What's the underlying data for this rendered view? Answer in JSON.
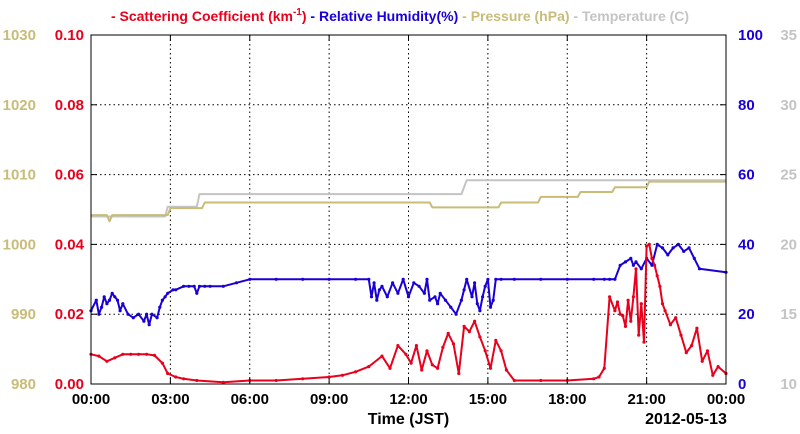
{
  "chart_data": {
    "type": "line",
    "legend": [
      {
        "dash": "-",
        "text": "Scattering Coefficient (km",
        "sup": "-1",
        "close": ")",
        "color": "#e8001c"
      },
      {
        "dash": "-",
        "text": "Relative Humidity(%)",
        "color": "#1a00d8"
      },
      {
        "dash": "-",
        "text": "Pressure (hPa)",
        "color": "#c8bc78"
      },
      {
        "dash": "-",
        "text": "Temperature (C)",
        "color": "#c4c4c4"
      }
    ],
    "xlabel": "Time (JST)",
    "date_label": "2012-05-13",
    "x_ticks": [
      "00:00",
      "03:00",
      "06:00",
      "09:00",
      "12:00",
      "15:00",
      "18:00",
      "21:00",
      "00:00"
    ],
    "x_range_hours": [
      0,
      24
    ],
    "axes": {
      "pressure": {
        "ticks": [
          "980",
          "990",
          "1000",
          "1010",
          "1020",
          "1030"
        ],
        "range": [
          980,
          1030
        ],
        "color": "#c8bc78"
      },
      "scattering": {
        "ticks": [
          "0.00",
          "0.02",
          "0.04",
          "0.06",
          "0.08",
          "0.10"
        ],
        "range": [
          0,
          0.1
        ],
        "color": "#e8001c"
      },
      "humidity": {
        "ticks": [
          "0",
          "20",
          "40",
          "60",
          "80",
          "100"
        ],
        "range": [
          0,
          100
        ],
        "color": "#1a00d8"
      },
      "temperature": {
        "ticks": [
          "10",
          "15",
          "20",
          "25",
          "30",
          "35"
        ],
        "range": [
          10,
          35
        ],
        "color": "#c4c4c4"
      }
    },
    "grid": true,
    "series": [
      {
        "name": "Temperature (C)",
        "axis": "temperature",
        "color": "#c4c4c4",
        "x": [
          0,
          0.5,
          1,
          2,
          2.8,
          2.9,
          4,
          4.1,
          14,
          14.2,
          21,
          21.1,
          24
        ],
        "y": [
          22.0,
          22.0,
          22.0,
          22.0,
          22.0,
          22.7,
          22.7,
          23.6,
          23.6,
          24.6,
          24.6,
          24.6,
          24.6
        ]
      },
      {
        "name": "Pressure (hPa)",
        "axis": "pressure",
        "color": "#c8bc78",
        "x": [
          0,
          0.6,
          0.7,
          0.8,
          2.9,
          3.0,
          4.2,
          4.3,
          10.5,
          10.6,
          12.8,
          12.9,
          15.4,
          15.5,
          16.9,
          17.0,
          18.4,
          18.5,
          19.7,
          19.8,
          21.0,
          21.1,
          24
        ],
        "y": [
          1004.2,
          1004.2,
          1003.3,
          1004.2,
          1004.2,
          1005.2,
          1005.2,
          1006.0,
          1006.0,
          1006.0,
          1006.0,
          1005.3,
          1005.3,
          1006.0,
          1006.0,
          1006.8,
          1006.8,
          1007.5,
          1007.5,
          1008.2,
          1008.2,
          1009.0,
          1009.0
        ]
      },
      {
        "name": "Relative Humidity(%)",
        "axis": "humidity",
        "color": "#1a00d8",
        "x": [
          0,
          0.2,
          0.3,
          0.4,
          0.5,
          0.6,
          0.7,
          0.8,
          0.9,
          1.0,
          1.1,
          1.2,
          1.4,
          1.6,
          1.8,
          2.0,
          2.1,
          2.2,
          2.3,
          2.5,
          2.6,
          2.7,
          2.8,
          2.9,
          3.1,
          3.2,
          3.5,
          3.7,
          3.9,
          4.0,
          4.1,
          4.3,
          4.5,
          5.0,
          5.5,
          6.0,
          7.0,
          8.0,
          9.0,
          10.0,
          10.5,
          10.6,
          10.7,
          10.8,
          10.9,
          11.0,
          11.2,
          11.4,
          11.6,
          11.8,
          12.0,
          12.2,
          12.4,
          12.6,
          12.7,
          12.8,
          13.0,
          13.1,
          13.2,
          13.4,
          13.6,
          13.8,
          14.0,
          14.1,
          14.2,
          14.4,
          14.5,
          14.6,
          14.7,
          14.8,
          14.9,
          15.0,
          15.1,
          15.2,
          15.3,
          15.5,
          16.0,
          17.0,
          18.0,
          19.0,
          19.4,
          19.6,
          19.8,
          20.0,
          20.2,
          20.4,
          20.5,
          20.6,
          20.8,
          21.0,
          21.2,
          21.4,
          21.6,
          21.8,
          22.0,
          22.2,
          22.4,
          22.6,
          22.8,
          23.0,
          24.0
        ],
        "y": [
          21,
          24,
          20,
          22,
          25,
          23,
          24,
          26,
          25,
          24,
          21,
          23,
          20,
          19,
          20,
          18,
          20,
          17,
          20,
          19,
          22,
          24,
          25,
          26,
          27,
          27,
          28,
          28,
          28,
          26,
          28,
          28,
          28,
          28,
          29,
          30,
          30,
          30,
          30,
          30,
          30,
          25,
          29,
          24,
          27,
          28,
          25,
          29,
          26,
          30,
          25,
          29,
          28,
          26,
          30,
          24,
          25,
          23,
          26,
          24,
          22,
          20,
          24,
          27,
          30,
          25,
          29,
          23,
          21,
          25,
          28,
          30,
          22,
          24,
          30,
          30,
          30,
          30,
          30,
          30,
          30,
          30,
          30,
          34,
          35,
          36,
          34,
          35,
          33,
          36,
          34,
          40,
          39,
          37,
          39,
          40,
          38,
          39,
          36,
          33,
          32
        ]
      },
      {
        "name": "Scattering Coefficient (km-1)",
        "axis": "scattering",
        "color": "#e8001c",
        "x": [
          0,
          0.3,
          0.6,
          0.9,
          1.2,
          1.5,
          1.8,
          2.1,
          2.4,
          2.7,
          2.9,
          3.2,
          3.5,
          4.0,
          5.0,
          6.0,
          7.0,
          8.0,
          9.0,
          9.5,
          10.0,
          10.5,
          11.0,
          11.3,
          11.6,
          11.9,
          12.1,
          12.3,
          12.5,
          12.7,
          12.9,
          13.1,
          13.3,
          13.5,
          13.7,
          13.9,
          14.1,
          14.3,
          14.5,
          14.7,
          14.9,
          15.1,
          15.3,
          15.5,
          15.7,
          16.0,
          17.0,
          18.0,
          19.0,
          19.2,
          19.4,
          19.6,
          19.8,
          19.9,
          20.0,
          20.1,
          20.2,
          20.3,
          20.4,
          20.5,
          20.6,
          20.7,
          20.8,
          20.9,
          21.0,
          21.1,
          21.2,
          21.3,
          21.4,
          21.5,
          21.6,
          21.7,
          21.9,
          22.1,
          22.3,
          22.5,
          22.7,
          22.9,
          23.1,
          23.3,
          23.5,
          23.7,
          24.0
        ],
        "y": [
          0.0085,
          0.008,
          0.0065,
          0.0075,
          0.0085,
          0.0085,
          0.0085,
          0.0085,
          0.0082,
          0.006,
          0.003,
          0.002,
          0.0015,
          0.001,
          0.0005,
          0.001,
          0.001,
          0.0015,
          0.002,
          0.0025,
          0.0035,
          0.005,
          0.008,
          0.0045,
          0.011,
          0.0085,
          0.006,
          0.011,
          0.004,
          0.0095,
          0.0055,
          0.0045,
          0.0105,
          0.0145,
          0.0115,
          0.003,
          0.0165,
          0.015,
          0.018,
          0.0135,
          0.0095,
          0.0045,
          0.0125,
          0.0095,
          0.004,
          0.001,
          0.001,
          0.001,
          0.0015,
          0.002,
          0.0045,
          0.025,
          0.021,
          0.0235,
          0.02,
          0.0195,
          0.0165,
          0.024,
          0.018,
          0.025,
          0.033,
          0.014,
          0.023,
          0.012,
          0.0395,
          0.04,
          0.036,
          0.034,
          0.031,
          0.028,
          0.023,
          0.021,
          0.017,
          0.019,
          0.014,
          0.009,
          0.011,
          0.016,
          0.0065,
          0.0095,
          0.0025,
          0.005,
          0.003
        ]
      }
    ]
  }
}
